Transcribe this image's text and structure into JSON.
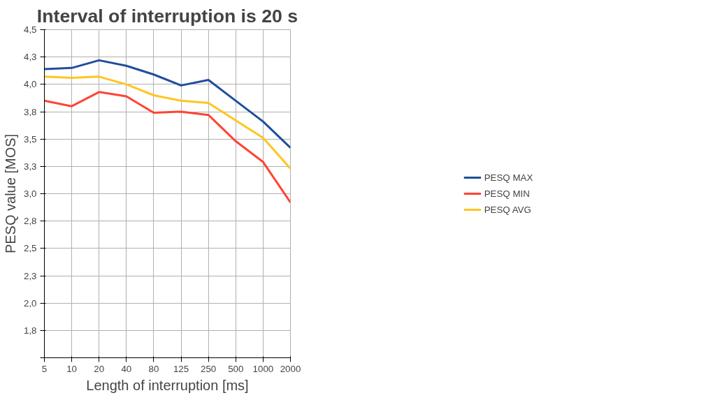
{
  "chart_data": {
    "type": "line",
    "title": "Interval of interruption is 20 s",
    "xlabel": "Length of interruption [ms]",
    "ylabel": "PESQ value [MOS]",
    "categories": [
      "5",
      "10",
      "20",
      "40",
      "80",
      "125",
      "250",
      "500",
      "1000",
      "2000"
    ],
    "series": [
      {
        "name": "PESQ MAX",
        "color": "#1f4e9c",
        "values": [
          4.14,
          4.15,
          4.22,
          4.17,
          4.09,
          3.99,
          4.04,
          3.85,
          3.66,
          3.42
        ]
      },
      {
        "name": "PESQ MIN",
        "color": "#ff4433",
        "values": [
          3.85,
          3.8,
          3.93,
          3.89,
          3.74,
          3.75,
          3.72,
          3.48,
          3.29,
          2.92
        ]
      },
      {
        "name": "PESQ AVG",
        "color": "#ffc520",
        "values": [
          4.07,
          4.06,
          4.07,
          4.0,
          3.9,
          3.85,
          3.83,
          3.67,
          3.51,
          3.23
        ]
      }
    ],
    "ylim": [
      1.5,
      4.5
    ],
    "yticks": [
      {
        "value": 1.5,
        "label": null
      },
      {
        "value": 1.75,
        "label": "1,8"
      },
      {
        "value": 2.0,
        "label": "2,0"
      },
      {
        "value": 2.25,
        "label": "2,3"
      },
      {
        "value": 2.5,
        "label": "2,5"
      },
      {
        "value": 2.75,
        "label": "2,8"
      },
      {
        "value": 3.0,
        "label": "3,0"
      },
      {
        "value": 3.25,
        "label": "3,3"
      },
      {
        "value": 3.5,
        "label": "3,5"
      },
      {
        "value": 3.75,
        "label": "3,8"
      },
      {
        "value": 4.0,
        "label": "4,0"
      },
      {
        "value": 4.25,
        "label": "4,3"
      },
      {
        "value": 4.5,
        "label": "4,5"
      }
    ],
    "grid": true,
    "legend": "right",
    "marker": "none",
    "line_style": "solid"
  }
}
